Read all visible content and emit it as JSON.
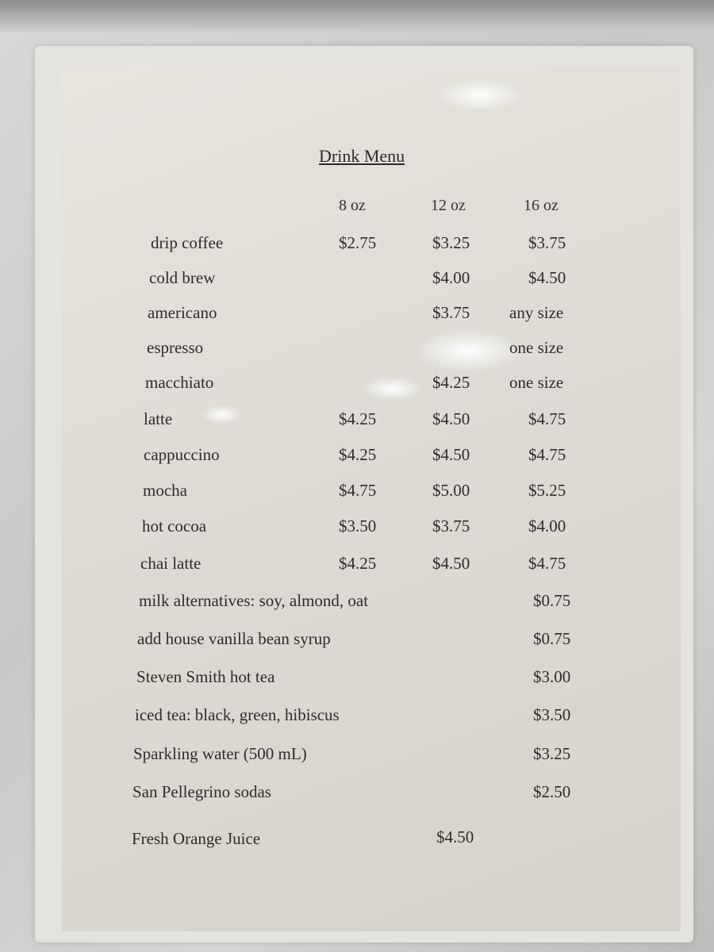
{
  "title": "Drink Menu",
  "sizes": [
    "8 oz",
    "12 oz",
    "16 oz"
  ],
  "items": [
    {
      "name": "drip coffee",
      "oz8": "$2.75",
      "oz12": "$3.25",
      "oz16": "$3.75"
    },
    {
      "name": "cold brew",
      "oz8": "",
      "oz12": "$4.00",
      "oz16": "$4.50"
    },
    {
      "name": "americano",
      "oz8": "",
      "oz12": "$3.75",
      "oz16": "any size"
    },
    {
      "name": "espresso",
      "oz8": "",
      "oz12": "",
      "oz16": "one size"
    },
    {
      "name": "macchiato",
      "oz8": "",
      "oz12": "$4.25",
      "oz16": "one size"
    },
    {
      "name": "latte",
      "oz8": "$4.25",
      "oz12": "$4.50",
      "oz16": "$4.75"
    },
    {
      "name": "cappuccino",
      "oz8": "$4.25",
      "oz12": "$4.50",
      "oz16": "$4.75"
    },
    {
      "name": "mocha",
      "oz8": "$4.75",
      "oz12": "$5.00",
      "oz16": "$5.25"
    },
    {
      "name": "hot cocoa",
      "oz8": "$3.50",
      "oz12": "$3.75",
      "oz16": "$4.00"
    },
    {
      "name": "chai latte",
      "oz8": "$4.25",
      "oz12": "$4.50",
      "oz16": "$4.75"
    }
  ],
  "extras": [
    {
      "name": "milk alternatives: soy, almond, oat",
      "price": "$0.75"
    },
    {
      "name": "add house vanilla bean syrup",
      "price": "$0.75"
    },
    {
      "name": "Steven Smith hot tea",
      "price": "$3.00"
    },
    {
      "name": "iced tea: black, green, hibiscus",
      "price": "$3.50"
    },
    {
      "name": "Sparkling water (500 mL)",
      "price": "$3.25"
    },
    {
      "name": "San Pellegrino sodas",
      "price": "$2.50"
    }
  ],
  "juice": {
    "name": "Fresh Orange Juice",
    "price": "$4.50"
  }
}
